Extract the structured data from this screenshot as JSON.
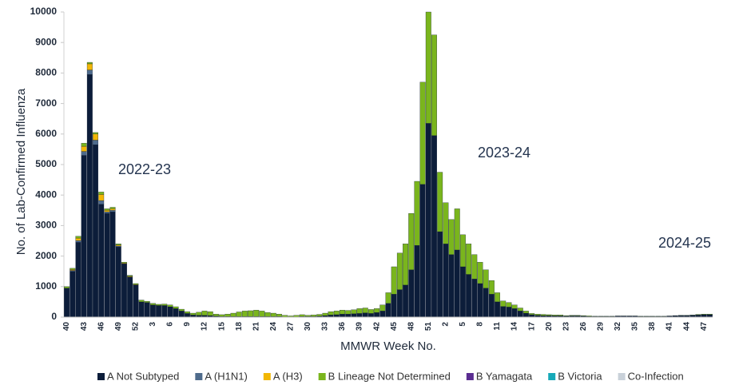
{
  "chart_data": {
    "type": "stacked-bar",
    "y_label": "No. of Lab-Confirmed Influenza",
    "x_label": "MMWR Week No.",
    "annotations": [
      "2022-23",
      "2023-24",
      "2024-25"
    ],
    "ylim": [
      0,
      10000
    ],
    "yticks": [
      0,
      1000,
      2000,
      3000,
      4000,
      5000,
      6000,
      7000,
      8000,
      9000,
      10000
    ],
    "legend": "bottom",
    "categories": [
      "40",
      null,
      null,
      "43",
      null,
      null,
      "46",
      null,
      null,
      "49",
      null,
      null,
      "52",
      null,
      null,
      "3",
      null,
      null,
      "6",
      null,
      null,
      "9",
      null,
      null,
      "12",
      null,
      null,
      "15",
      null,
      null,
      "18",
      null,
      null,
      "21",
      null,
      null,
      "24",
      null,
      null,
      "27",
      null,
      null,
      "30",
      null,
      null,
      "33",
      null,
      null,
      "36",
      null,
      null,
      "39",
      null,
      null,
      "42",
      null,
      null,
      "45",
      null,
      null,
      "48",
      null,
      null,
      "51",
      null,
      null,
      "2",
      null,
      null,
      "5",
      null,
      null,
      "8",
      null,
      null,
      "11",
      null,
      null,
      "14",
      null,
      null,
      "17",
      null,
      null,
      "20",
      null,
      null,
      "23",
      null,
      null,
      "26",
      null,
      null,
      "29",
      null,
      null,
      "32",
      null,
      null,
      "35",
      null,
      null,
      "38",
      null,
      null,
      "41",
      null,
      null,
      "44",
      null,
      null,
      "47",
      null
    ],
    "series": [
      {
        "name": "A Not Subtyped",
        "color": "#0c1d3a",
        "values": [
          950,
          1500,
          2450,
          5300,
          7950,
          5650,
          3700,
          3400,
          3450,
          2300,
          1750,
          1320,
          1050,
          500,
          480,
          400,
          380,
          380,
          340,
          280,
          200,
          120,
          70,
          60,
          60,
          50,
          30,
          20,
          20,
          20,
          20,
          20,
          20,
          20,
          20,
          20,
          20,
          20,
          10,
          10,
          10,
          20,
          20,
          20,
          30,
          50,
          70,
          80,
          100,
          100,
          110,
          120,
          140,
          120,
          150,
          200,
          450,
          750,
          900,
          1050,
          1550,
          2350,
          4350,
          6350,
          5950,
          2800,
          2400,
          2050,
          2200,
          1650,
          1400,
          1250,
          1100,
          950,
          750,
          500,
          350,
          330,
          280,
          200,
          130,
          80,
          60,
          50,
          50,
          40,
          40,
          30,
          40,
          40,
          30,
          20,
          20,
          20,
          20,
          20,
          30,
          30,
          30,
          30,
          20,
          20,
          20,
          20,
          20,
          30,
          40,
          50,
          50,
          60,
          70,
          80,
          80
        ]
      },
      {
        "name": "A (H1N1)",
        "color": "#4f6b8c",
        "values": [
          0,
          30,
          60,
          130,
          150,
          150,
          120,
          50,
          50,
          30,
          0,
          0,
          0,
          0,
          0,
          0,
          0,
          0,
          0,
          0,
          0,
          0,
          0,
          0,
          0,
          0,
          0,
          0,
          0,
          0,
          0,
          0,
          0,
          0,
          0,
          0,
          0,
          0,
          0,
          0,
          0,
          0,
          0,
          0,
          0,
          0,
          0,
          0,
          0,
          0,
          0,
          0,
          0,
          0,
          0,
          0,
          0,
          0,
          0,
          0,
          0,
          0,
          0,
          0,
          0,
          0,
          0,
          0,
          0,
          0,
          0,
          0,
          0,
          0,
          0,
          0,
          0,
          0,
          0,
          0,
          0,
          0,
          0,
          0,
          0,
          0,
          0,
          0,
          0,
          0,
          0,
          0,
          0,
          0,
          0,
          0,
          0,
          0,
          0,
          0,
          0,
          0,
          0,
          0,
          0,
          0,
          0,
          0,
          0,
          0,
          0,
          0,
          0
        ]
      },
      {
        "name": "A (H3)",
        "color": "#f2b705",
        "values": [
          0,
          30,
          80,
          170,
          200,
          200,
          200,
          50,
          50,
          30,
          20,
          20,
          20,
          0,
          0,
          0,
          0,
          0,
          0,
          0,
          0,
          0,
          0,
          0,
          0,
          0,
          0,
          0,
          0,
          0,
          0,
          0,
          0,
          0,
          0,
          0,
          0,
          0,
          0,
          0,
          0,
          0,
          0,
          0,
          0,
          0,
          0,
          0,
          0,
          0,
          0,
          0,
          0,
          0,
          0,
          0,
          0,
          0,
          0,
          0,
          0,
          0,
          0,
          0,
          0,
          0,
          0,
          0,
          0,
          0,
          0,
          0,
          0,
          0,
          0,
          0,
          0,
          0,
          0,
          0,
          0,
          0,
          0,
          0,
          0,
          0,
          0,
          0,
          0,
          0,
          0,
          0,
          0,
          0,
          0,
          0,
          0,
          0,
          0,
          0,
          0,
          0,
          0,
          0,
          0,
          0,
          0,
          0,
          0,
          0,
          0,
          0,
          0
        ]
      },
      {
        "name": "B Lineage Not Determined",
        "color": "#7ab51d",
        "values": [
          50,
          40,
          60,
          100,
          50,
          50,
          80,
          50,
          50,
          40,
          30,
          30,
          30,
          60,
          40,
          50,
          40,
          50,
          60,
          60,
          60,
          60,
          60,
          100,
          140,
          130,
          70,
          60,
          80,
          110,
          150,
          180,
          190,
          210,
          180,
          130,
          110,
          80,
          50,
          30,
          50,
          60,
          40,
          50,
          60,
          80,
          110,
          120,
          130,
          120,
          130,
          160,
          160,
          130,
          130,
          200,
          350,
          900,
          1200,
          1350,
          1850,
          2100,
          3350,
          3650,
          3300,
          1950,
          1350,
          1150,
          1350,
          1050,
          1000,
          800,
          700,
          600,
          450,
          300,
          180,
          150,
          120,
          100,
          70,
          40,
          40,
          40,
          30,
          30,
          30,
          20,
          20,
          20,
          20,
          20,
          10,
          10,
          10,
          10,
          10,
          10,
          10,
          10,
          10,
          10,
          10,
          10,
          10,
          10,
          10,
          10,
          10,
          10,
          20,
          20,
          20
        ]
      },
      {
        "name": "B Yamagata",
        "color": "#5a2d91",
        "values": [
          0,
          0,
          0,
          0,
          0,
          0,
          0,
          0,
          0,
          0,
          0,
          0,
          0,
          0,
          0,
          0,
          0,
          0,
          0,
          0,
          0,
          0,
          0,
          0,
          0,
          0,
          0,
          0,
          0,
          0,
          0,
          0,
          0,
          0,
          0,
          0,
          0,
          0,
          0,
          0,
          0,
          0,
          0,
          0,
          0,
          0,
          0,
          0,
          0,
          0,
          0,
          0,
          0,
          0,
          0,
          0,
          0,
          0,
          0,
          0,
          0,
          0,
          0,
          0,
          0,
          0,
          0,
          0,
          0,
          0,
          0,
          0,
          0,
          0,
          0,
          0,
          0,
          0,
          0,
          0,
          0,
          0,
          0,
          0,
          0,
          0,
          0,
          0,
          0,
          0,
          0,
          0,
          0,
          0,
          0,
          0,
          0,
          0,
          0,
          0,
          0,
          0,
          0,
          0,
          0,
          0,
          0,
          0,
          0,
          0,
          0,
          0,
          0
        ]
      },
      {
        "name": "B Victoria",
        "color": "#17a9b8",
        "values": [
          0,
          0,
          0,
          0,
          0,
          0,
          0,
          0,
          0,
          0,
          0,
          0,
          0,
          0,
          0,
          0,
          0,
          0,
          0,
          0,
          0,
          0,
          0,
          0,
          0,
          0,
          0,
          0,
          0,
          0,
          0,
          0,
          0,
          0,
          0,
          0,
          0,
          0,
          0,
          0,
          0,
          0,
          0,
          0,
          0,
          0,
          0,
          0,
          0,
          0,
          0,
          0,
          0,
          0,
          0,
          0,
          0,
          0,
          0,
          0,
          0,
          0,
          0,
          0,
          0,
          0,
          0,
          0,
          0,
          0,
          0,
          0,
          0,
          0,
          0,
          0,
          0,
          0,
          0,
          0,
          0,
          0,
          0,
          0,
          0,
          0,
          0,
          0,
          0,
          0,
          0,
          0,
          0,
          0,
          0,
          0,
          0,
          0,
          0,
          0,
          0,
          0,
          0,
          0,
          0,
          0,
          0,
          0,
          0,
          0,
          0,
          0,
          0
        ]
      },
      {
        "name": "Co-Infection",
        "color": "#c9d1d9",
        "values": [
          0,
          0,
          0,
          0,
          0,
          0,
          0,
          0,
          0,
          0,
          0,
          0,
          0,
          0,
          0,
          0,
          0,
          0,
          0,
          0,
          0,
          0,
          0,
          0,
          0,
          0,
          0,
          0,
          0,
          0,
          0,
          0,
          0,
          0,
          0,
          0,
          0,
          0,
          0,
          0,
          0,
          0,
          0,
          0,
          0,
          0,
          0,
          0,
          0,
          0,
          0,
          0,
          0,
          0,
          0,
          0,
          0,
          0,
          0,
          0,
          0,
          0,
          0,
          0,
          0,
          0,
          0,
          0,
          0,
          0,
          0,
          0,
          0,
          0,
          0,
          0,
          0,
          0,
          0,
          0,
          0,
          0,
          0,
          0,
          0,
          0,
          0,
          0,
          0,
          0,
          0,
          0,
          0,
          0,
          0,
          0,
          0,
          0,
          0,
          0,
          0,
          0,
          0,
          0,
          0,
          0,
          0,
          0,
          0,
          0,
          0,
          0,
          0
        ]
      }
    ]
  }
}
